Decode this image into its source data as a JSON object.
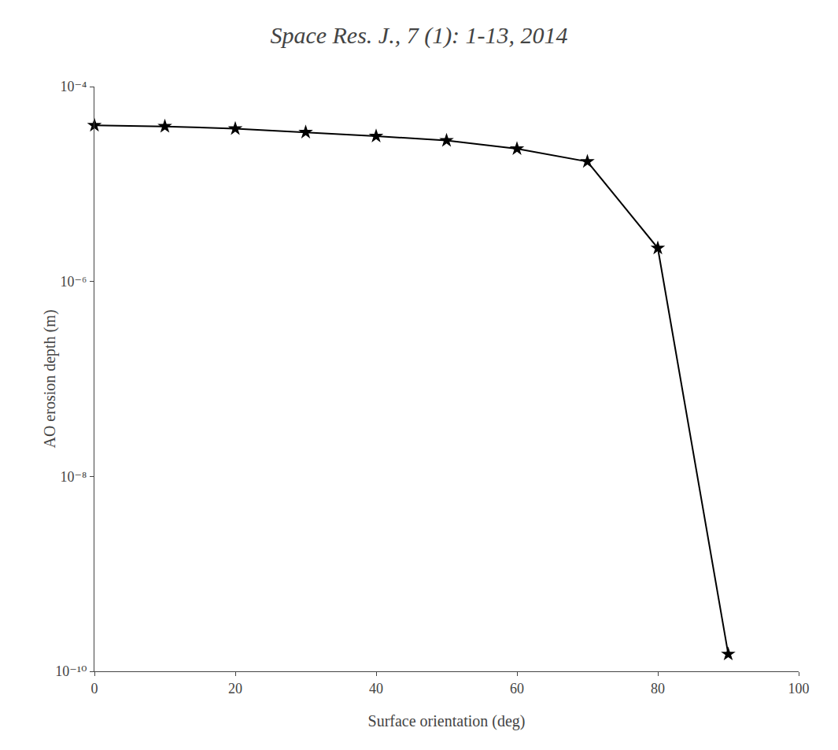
{
  "chart_data": {
    "type": "line",
    "title": "Space Res. J., 7 (1): 1-13, 2014",
    "xlabel": "Surface orientation (deg)",
    "ylabel": "AO erosion depth (m)",
    "x": [
      0,
      10,
      20,
      30,
      40,
      50,
      60,
      70,
      80,
      90
    ],
    "values": [
      4e-05,
      3.9e-05,
      3.7e-05,
      3.4e-05,
      3.1e-05,
      2.8e-05,
      2.3e-05,
      1.7e-05,
      2.2e-06,
      1.5e-10
    ],
    "color": "#000000",
    "marker": "star",
    "log": "y",
    "grid": false,
    "xlim": [
      0,
      100
    ],
    "ylim": [
      1e-10,
      0.0001
    ],
    "xticks": [
      0,
      20,
      40,
      60,
      80,
      100
    ],
    "yticks": [
      {
        "value": 1e-10,
        "label": "10⁻¹⁰"
      },
      {
        "value": 1e-08,
        "label": "10⁻⁸"
      },
      {
        "value": 1e-06,
        "label": "10⁻⁶"
      },
      {
        "value": 0.0001,
        "label": "10⁻⁴"
      }
    ]
  }
}
